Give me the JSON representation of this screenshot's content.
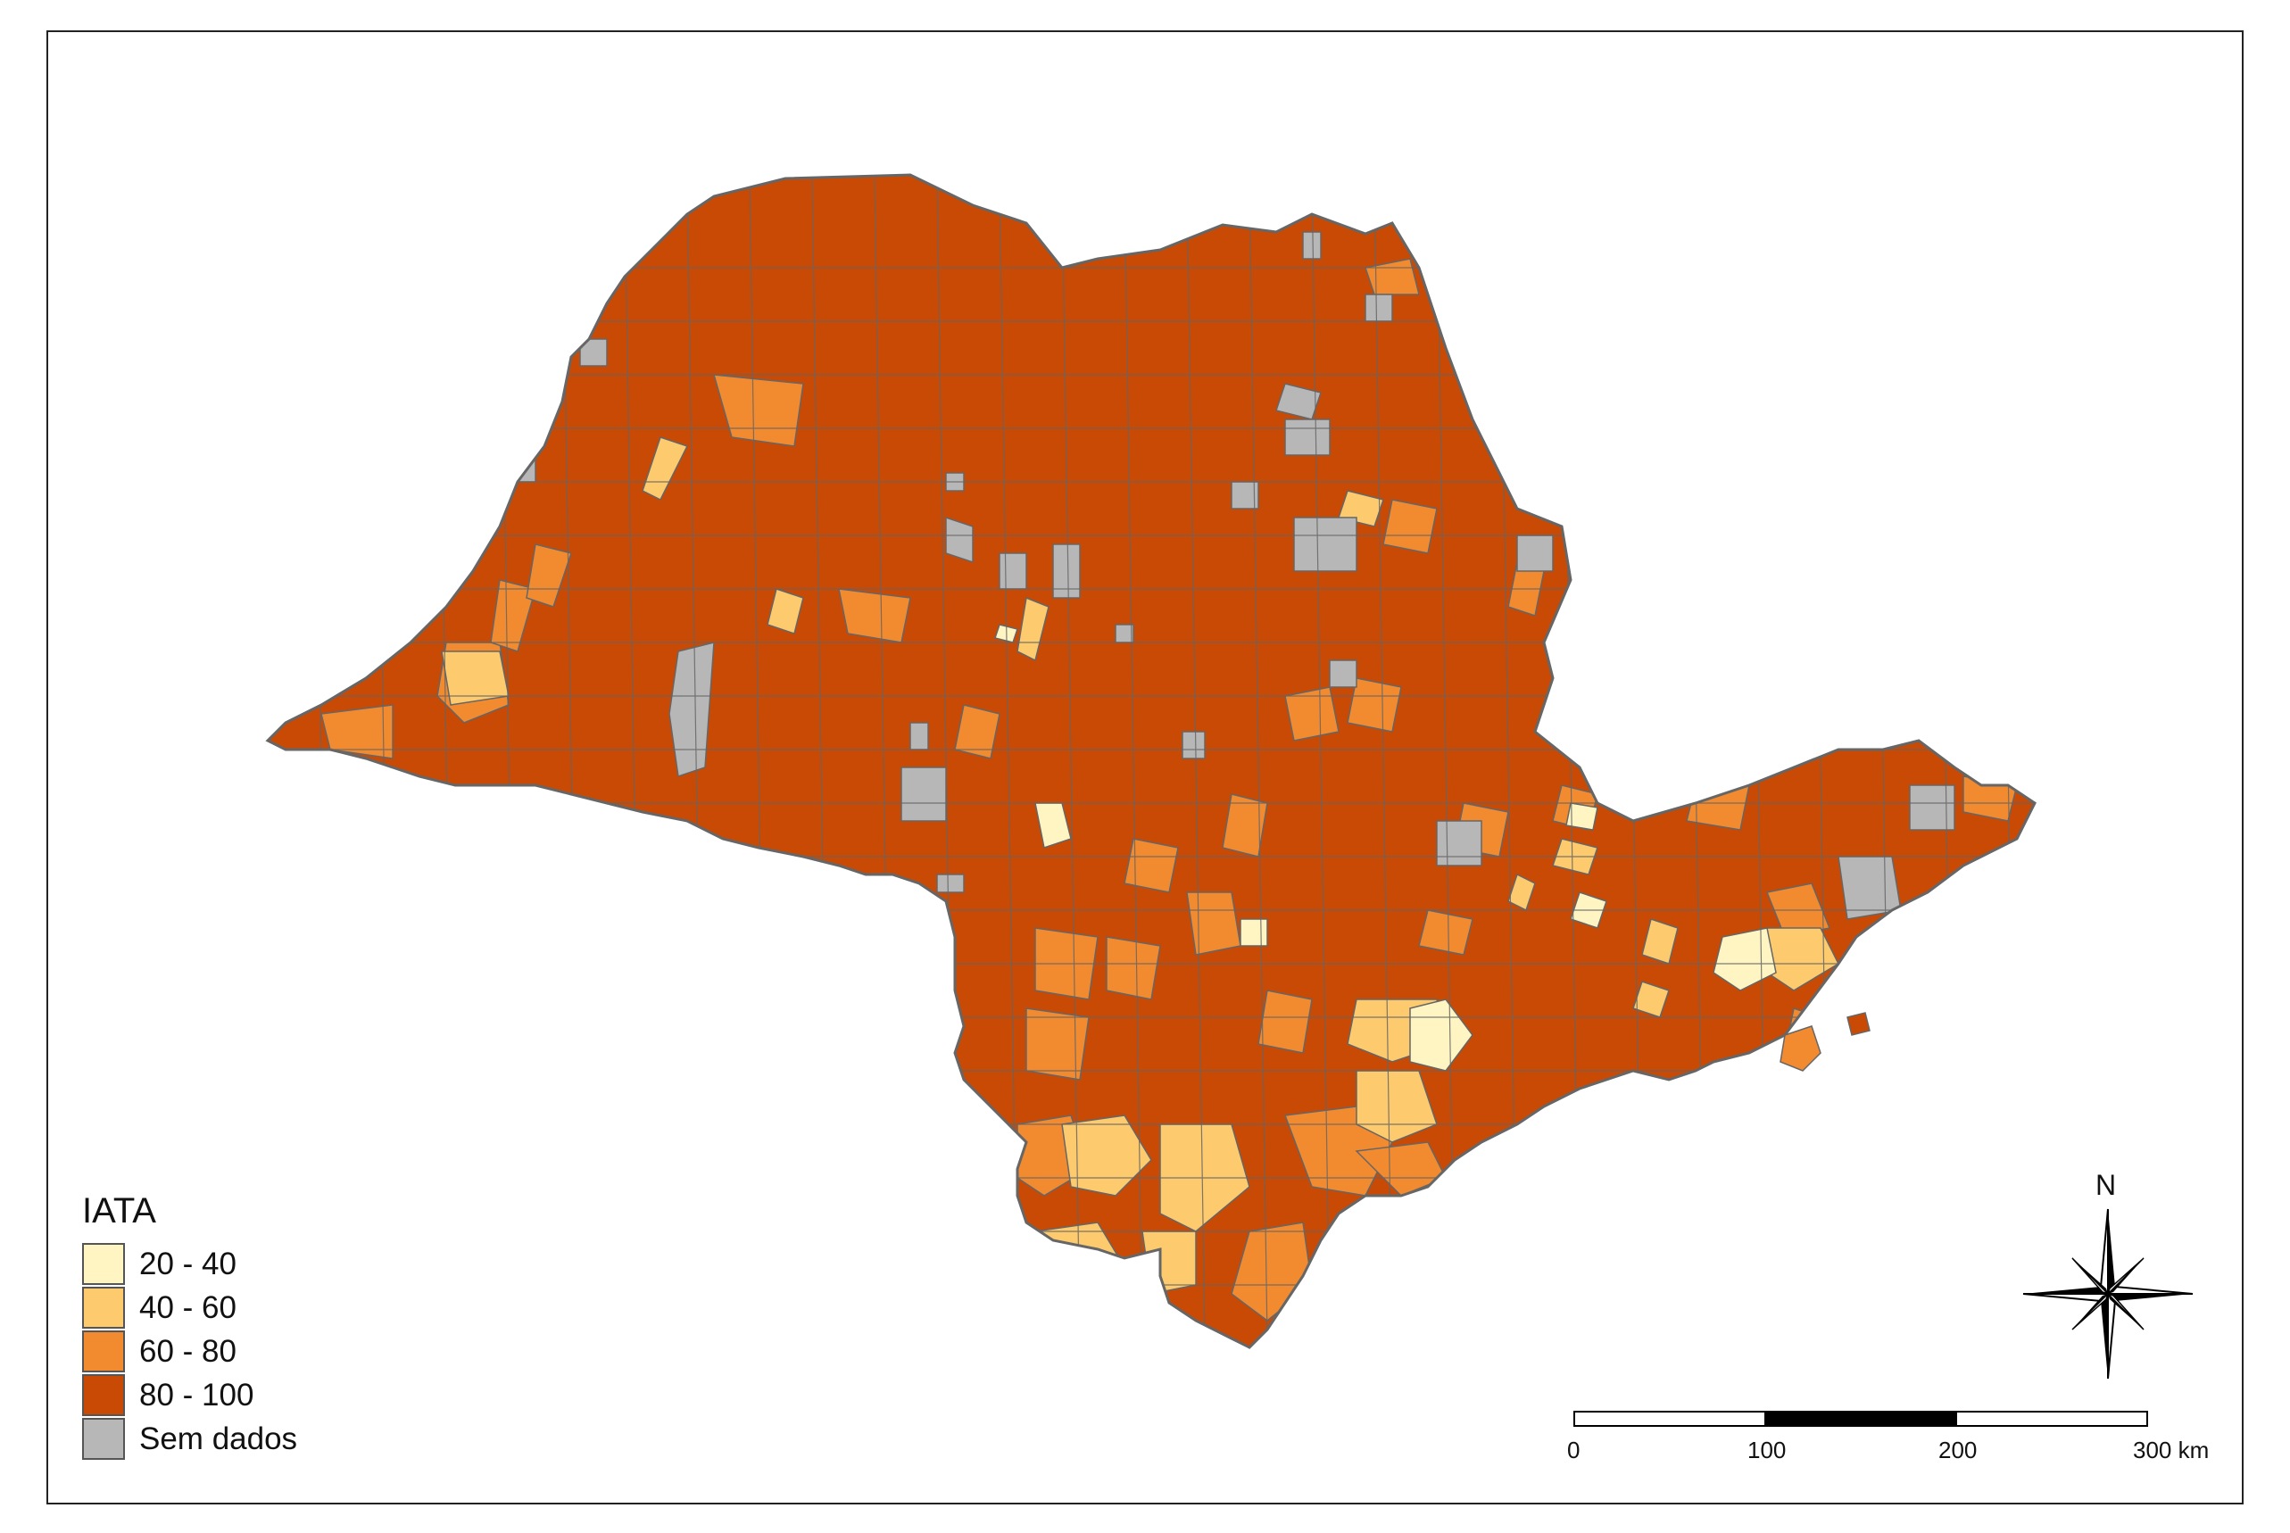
{
  "legend": {
    "title": "IATA",
    "classes": [
      {
        "label": "20 - 40",
        "color": "#fff5c2"
      },
      {
        "label": "40 - 60",
        "color": "#fdcb6e"
      },
      {
        "label": "60 - 80",
        "color": "#f28b30"
      },
      {
        "label": "80 - 100",
        "color": "#c84a05"
      },
      {
        "label": "Sem dados",
        "color": "#b7b7b7"
      }
    ]
  },
  "north_arrow": {
    "label": "N",
    "icon": "compass-rose-icon"
  },
  "scale_bar": {
    "ticks": [
      "0",
      "100",
      "200",
      "300 km"
    ]
  },
  "colors": {
    "border": "#666666",
    "dominant": "#c84a05"
  }
}
